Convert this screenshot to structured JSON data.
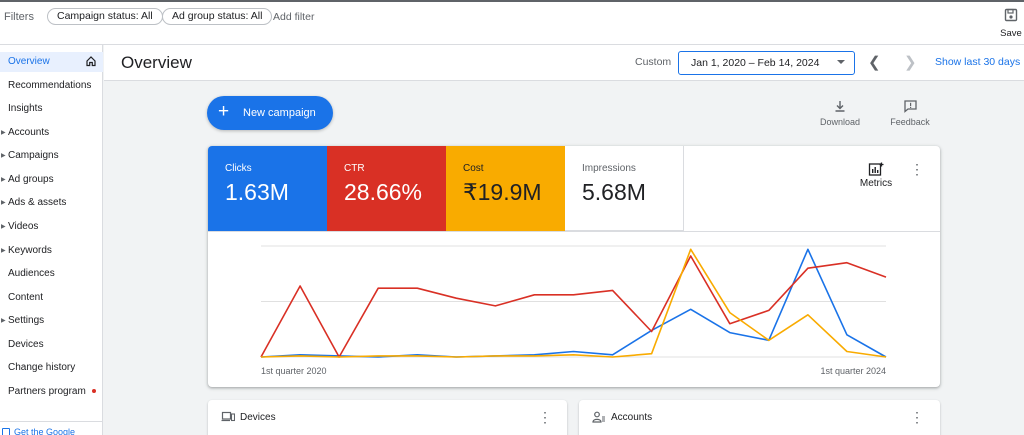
{
  "filters": {
    "label": "Filters",
    "chips": [
      "Campaign status: All",
      "Ad group status: All"
    ],
    "add_filter": "Add filter",
    "save_label": "Save"
  },
  "sidebar": {
    "items": [
      {
        "label": "Overview",
        "active": true
      },
      {
        "label": "Recommendations"
      },
      {
        "label": "Insights"
      },
      {
        "label": "Accounts",
        "expandable": true
      },
      {
        "label": "Campaigns",
        "expandable": true
      },
      {
        "label": "Ad groups",
        "expandable": true
      },
      {
        "label": "Ads & assets",
        "expandable": true
      },
      {
        "label": "Videos",
        "expandable": true
      },
      {
        "label": "Keywords",
        "expandable": true
      },
      {
        "label": "Audiences"
      },
      {
        "label": "Content"
      },
      {
        "label": "Settings",
        "expandable": true
      },
      {
        "label": "Devices"
      },
      {
        "label": "Change history"
      },
      {
        "label": "Partners program",
        "badge_dot": true
      }
    ],
    "footer_link": "Get the Google"
  },
  "header": {
    "title": "Overview",
    "range_label": "Custom",
    "date_range": "Jan 1, 2020 – Feb 14, 2024",
    "show_last": "Show last 30 days"
  },
  "actions": {
    "new_campaign": "New campaign",
    "download": "Download",
    "feedback": "Feedback"
  },
  "metrics": {
    "tiles": [
      {
        "label": "Clicks",
        "value": "1.63M",
        "color": "#1a73e8"
      },
      {
        "label": "CTR",
        "value": "28.66%",
        "color": "#d93025"
      },
      {
        "label": "Cost",
        "value": "₹19.9M",
        "color": "#f9ab00"
      },
      {
        "label": "Impressions",
        "value": "5.68M",
        "color": "#ffffff"
      }
    ],
    "metrics_button": "Metrics"
  },
  "chart_data": {
    "type": "line",
    "x_start_label": "1st quarter 2020",
    "x_end_label": "1st quarter 2024",
    "points": 17,
    "series": [
      {
        "color": "#1a73e8",
        "values": [
          0.0,
          0.02,
          0.01,
          0.0,
          0.02,
          0.0,
          0.01,
          0.02,
          0.05,
          0.02,
          0.24,
          0.43,
          0.22,
          0.15,
          0.97,
          0.2,
          0.0
        ]
      },
      {
        "color": "#d93025",
        "values": [
          0.0,
          0.64,
          0.0,
          0.62,
          0.62,
          0.53,
          0.46,
          0.56,
          0.56,
          0.6,
          0.23,
          0.91,
          0.3,
          0.42,
          0.8,
          0.85,
          0.72
        ]
      },
      {
        "color": "#f9ab00",
        "values": [
          0.0,
          0.01,
          0.0,
          0.01,
          0.01,
          0.0,
          0.01,
          0.01,
          0.02,
          0.0,
          0.03,
          0.97,
          0.4,
          0.15,
          0.38,
          0.05,
          0.0
        ]
      }
    ],
    "grid": true
  },
  "lower_cards": {
    "devices": "Devices",
    "accounts": "Accounts"
  }
}
